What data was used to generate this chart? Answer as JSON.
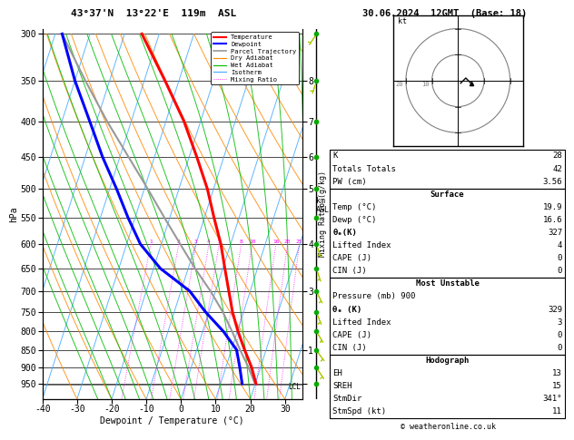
{
  "title_left": "43°37'N  13°22'E  119m  ASL",
  "title_right": "30.06.2024  12GMT  (Base: 18)",
  "xlabel": "Dewpoint / Temperature (°C)",
  "ylabel_left": "hPa",
  "isotherm_color": "#44aaff",
  "dryadiabat_color": "#ff8800",
  "wetadiabat_color": "#00bb00",
  "mixratio_color": "#ff00ff",
  "temp_color": "#ff0000",
  "dewpoint_color": "#0000ff",
  "parcel_color": "#999999",
  "background_color": "#ffffff",
  "temp_ticks": [
    -40,
    -30,
    -20,
    -10,
    0,
    10,
    20,
    30
  ],
  "pressure_ticks": [
    300,
    350,
    400,
    450,
    500,
    550,
    600,
    650,
    700,
    750,
    800,
    850,
    900,
    950
  ],
  "temperature_data": {
    "pressure": [
      950,
      900,
      850,
      800,
      750,
      700,
      650,
      600,
      550,
      500,
      450,
      400,
      350,
      300
    ],
    "temp": [
      20.2,
      17.4,
      13.8,
      10.2,
      6.8,
      3.8,
      0.6,
      -2.8,
      -7.2,
      -11.8,
      -17.8,
      -24.8,
      -34.0,
      -45.0
    ]
  },
  "dewpoint_data": {
    "pressure": [
      950,
      900,
      850,
      800,
      750,
      700,
      650,
      600,
      550,
      500,
      450,
      400,
      350,
      300
    ],
    "dewp": [
      16.2,
      14.0,
      11.5,
      6.0,
      -1.0,
      -7.5,
      -18.0,
      -26.0,
      -32.0,
      -38.0,
      -45.0,
      -52.0,
      -60.0,
      -68.0
    ]
  },
  "parcel_data": {
    "pressure": [
      950,
      900,
      850,
      800,
      750,
      700,
      650,
      600,
      550,
      500,
      450,
      400,
      350,
      300
    ],
    "temp": [
      19.9,
      16.5,
      12.5,
      8.5,
      4.0,
      -1.5,
      -8.0,
      -14.5,
      -21.5,
      -29.0,
      -37.5,
      -47.0,
      -57.0,
      -68.0
    ]
  },
  "mixing_ratio_lines": [
    1,
    2,
    3,
    4,
    5,
    8,
    10,
    16,
    20,
    25
  ],
  "km_ticks_p": [
    350,
    400,
    450,
    500,
    600,
    700,
    850,
    950
  ],
  "km_ticks_v": [
    "8",
    "7",
    "6",
    "5",
    "4",
    "3",
    "1",
    ""
  ],
  "wind_pressures": [
    950,
    900,
    850,
    800,
    750,
    700,
    650,
    600,
    550,
    500,
    450,
    400,
    350,
    300
  ],
  "wind_u": [
    -1,
    -2,
    -3,
    -3,
    -2,
    -2,
    -1,
    -1,
    -1,
    0,
    0,
    1,
    1,
    2
  ],
  "wind_v": [
    2,
    3,
    4,
    5,
    5,
    4,
    3,
    3,
    2,
    2,
    2,
    2,
    3,
    3
  ],
  "lcl_pressure": 952,
  "right_panel": {
    "K": 28,
    "Totals_Totals": 42,
    "PW_cm": "3.56",
    "Surface_Temp": "19.9",
    "Surface_Dewp": "16.6",
    "Surface_theta_e": 327,
    "Lifted_Index": 4,
    "CAPE": 0,
    "CIN": 0,
    "MU_Pressure": 900,
    "MU_theta_e": 329,
    "MU_Lifted_Index": 3,
    "MU_CAPE": 0,
    "MU_CIN": 0,
    "EH": 13,
    "SREH": 15,
    "StmDir": "341°",
    "StmSpd": 11
  }
}
